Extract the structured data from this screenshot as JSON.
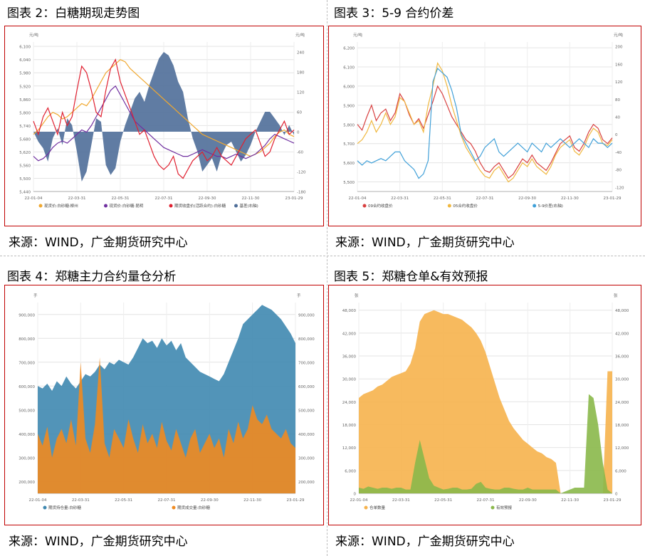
{
  "panels": [
    {
      "title": "图表 2：白糖期现走势图",
      "source": "来源：WIND，广金期货研究中心",
      "chart_data": {
        "type": "line",
        "left_unit": "元/吨",
        "right_unit": "元/吨",
        "ylim": [
          5440,
          6120
        ],
        "ylim_right": [
          -180,
          270
        ],
        "y_ticks": [
          5440,
          5500,
          5560,
          5620,
          5680,
          5740,
          5800,
          5860,
          5920,
          5980,
          6040,
          6100
        ],
        "y_ticks_right": [
          -180,
          -120,
          -60,
          0,
          60,
          120,
          180,
          240
        ],
        "x_ticks": [
          "22-01-04",
          "22-03-31",
          "22-05-31",
          "22-07-31",
          "22-09-30",
          "22-11-30",
          "23-01-29"
        ],
        "legend_position": "bottom",
        "series": [
          {
            "name": "现货价:白砂糖:柳州",
            "axis": "left",
            "color": "#f0a830",
            "values": [
              5700,
              5720,
              5750,
              5780,
              5800,
              5790,
              5770,
              5780,
              5800,
              5820,
              5840,
              5830,
              5860,
              5900,
              5940,
              5980,
              6000,
              6020,
              6040,
              6030,
              6000,
              5980,
              5960,
              5940,
              5920,
              5900,
              5880,
              5860,
              5840,
              5820,
              5800,
              5780,
              5760,
              5740,
              5720,
              5700,
              5690,
              5680,
              5670,
              5660,
              5650,
              5640,
              5630,
              5620,
              5610,
              5600,
              5610,
              5620,
              5640,
              5660,
              5690,
              5710,
              5720,
              5700,
              5690
            ]
          },
          {
            "name": "现货价:白砂糖:昆明",
            "axis": "left",
            "color": "#7030a0",
            "values": [
              5600,
              5580,
              5590,
              5610,
              5640,
              5660,
              5670,
              5660,
              5680,
              5700,
              5720,
              5710,
              5740,
              5780,
              5820,
              5860,
              5900,
              5920,
              5880,
              5840,
              5800,
              5760,
              5740,
              5720,
              5700,
              5680,
              5660,
              5640,
              5630,
              5620,
              5610,
              5600,
              5600,
              5610,
              5620,
              5630,
              5620,
              5610,
              5600,
              5600,
              5590,
              5600,
              5610,
              5600,
              5590,
              5600,
              5610,
              5630,
              5650,
              5680,
              5700,
              5690,
              5680,
              5670,
              5660
            ]
          },
          {
            "name": "期货收盘价(活跃合约):白砂糖",
            "axis": "left",
            "color": "#e02030",
            "values": [
              5760,
              5700,
              5780,
              5820,
              5760,
              5700,
              5800,
              5740,
              5780,
              5900,
              6010,
              5980,
              5900,
              5800,
              5780,
              5900,
              6000,
              6040,
              5940,
              5880,
              5820,
              5760,
              5700,
              5720,
              5660,
              5600,
              5560,
              5540,
              5560,
              5600,
              5520,
              5500,
              5540,
              5580,
              5600,
              5620,
              5580,
              5600,
              5640,
              5600,
              5580,
              5560,
              5600,
              5640,
              5680,
              5700,
              5720,
              5660,
              5600,
              5620,
              5680,
              5720,
              5760,
              5700,
              5720
            ]
          },
          {
            "name": "基差(右轴)",
            "axis": "right",
            "color": "#4f6e99",
            "fill": true,
            "values": [
              0,
              -30,
              -50,
              -90,
              -20,
              10,
              -40,
              40,
              20,
              -60,
              -150,
              -120,
              -40,
              40,
              30,
              -100,
              -130,
              -110,
              -30,
              20,
              60,
              100,
              120,
              90,
              140,
              180,
              220,
              240,
              230,
              200,
              150,
              120,
              40,
              -20,
              -60,
              -120,
              -100,
              -80,
              -120,
              -70,
              -40,
              -30,
              -60,
              -90,
              -70,
              -40,
              0,
              30,
              60,
              60,
              40,
              20,
              -10,
              20,
              -10
            ]
          }
        ]
      }
    },
    {
      "title": "图表 3：5-9 合约价差",
      "source": "来源：WIND，广金期货研究中心",
      "chart_data": {
        "type": "line",
        "left_unit": "元/吨",
        "right_unit": "元/吨",
        "ylim": [
          5450,
          6230
        ],
        "ylim_right": [
          -130,
          210
        ],
        "y_ticks": [
          5500,
          5600,
          5700,
          5800,
          5900,
          6000,
          6100,
          6200
        ],
        "y_ticks_right": [
          -120,
          -80,
          -40,
          0,
          40,
          80,
          120,
          160,
          200
        ],
        "x_ticks": [
          "22-01-04",
          "22-03-31",
          "22-05-31",
          "22-07-31",
          "22-09-30",
          "22-11-30",
          "23-01-29"
        ],
        "legend_position": "bottom",
        "series": [
          {
            "name": "09合约收盘价",
            "axis": "left",
            "color": "#d84040",
            "values": [
              5800,
              5770,
              5840,
              5900,
              5820,
              5860,
              5880,
              5820,
              5860,
              5960,
              5920,
              5850,
              5800,
              5830,
              5780,
              5850,
              5920,
              6000,
              5960,
              5900,
              5840,
              5800,
              5760,
              5720,
              5700,
              5660,
              5600,
              5560,
              5550,
              5580,
              5600,
              5560,
              5520,
              5540,
              5580,
              5620,
              5600,
              5640,
              5600,
              5580,
              5560,
              5600,
              5650,
              5700,
              5720,
              5740,
              5680,
              5660,
              5700,
              5760,
              5800,
              5780,
              5720,
              5700,
              5730
            ]
          },
          {
            "name": "05合约收盘价",
            "axis": "left",
            "color": "#f0b840",
            "values": [
              5700,
              5720,
              5760,
              5820,
              5760,
              5800,
              5860,
              5800,
              5840,
              5940,
              5920,
              5860,
              5800,
              5820,
              5760,
              5900,
              6000,
              6120,
              6080,
              6000,
              5900,
              5820,
              5740,
              5680,
              5640,
              5600,
              5560,
              5530,
              5520,
              5560,
              5580,
              5540,
              5500,
              5520,
              5560,
              5600,
              5580,
              5620,
              5580,
              5560,
              5540,
              5580,
              5640,
              5680,
              5700,
              5720,
              5660,
              5640,
              5680,
              5740,
              5780,
              5760,
              5700,
              5690,
              5720
            ]
          },
          {
            "name": "5-9价差(右轴)",
            "axis": "right",
            "color": "#40a0d8",
            "values": [
              -60,
              -70,
              -60,
              -65,
              -60,
              -55,
              -60,
              -50,
              -40,
              -40,
              -60,
              -70,
              -80,
              -100,
              -90,
              -60,
              120,
              150,
              140,
              130,
              100,
              60,
              0,
              -20,
              -40,
              -60,
              -50,
              -30,
              -20,
              -10,
              -40,
              -50,
              -40,
              -30,
              -20,
              -30,
              -40,
              -20,
              -30,
              -40,
              -20,
              -30,
              -20,
              -10,
              -20,
              -30,
              -20,
              -10,
              -20,
              -30,
              -10,
              -20,
              -20,
              -30,
              -20
            ]
          }
        ]
      }
    },
    {
      "title": "图表 4：郑糖主力合约量仓分析",
      "source": "来源：WIND，广金期货研究中心",
      "chart_data": {
        "type": "area",
        "left_unit": "手",
        "right_unit": "手",
        "ylim": [
          150000,
          950000
        ],
        "ylim_right": [
          150000,
          950000
        ],
        "y_ticks": [
          200000,
          300000,
          400000,
          500000,
          600000,
          700000,
          800000,
          900000
        ],
        "y_ticks_right": [
          200000,
          300000,
          400000,
          500000,
          600000,
          700000,
          800000,
          900000
        ],
        "x_ticks": [
          "22-01-04",
          "22-03-31",
          "22-05-31",
          "22-07-31",
          "22-09-30",
          "22-11-30",
          "23-01-29"
        ],
        "legend_position": "bottom",
        "series": [
          {
            "name": "期货持仓量:白砂糖",
            "axis": "left",
            "color": "#3f88b0",
            "fill": true,
            "values": [
              600000,
              590000,
              610000,
              580000,
              620000,
              600000,
              640000,
              610000,
              590000,
              620000,
              650000,
              640000,
              660000,
              690000,
              670000,
              700000,
              690000,
              710000,
              700000,
              690000,
              720000,
              760000,
              800000,
              780000,
              790000,
              760000,
              800000,
              770000,
              790000,
              750000,
              780000,
              720000,
              700000,
              680000,
              660000,
              650000,
              640000,
              630000,
              620000,
              650000,
              700000,
              750000,
              800000,
              860000,
              880000,
              900000,
              920000,
              940000,
              930000,
              920000,
              900000,
              880000,
              850000,
              820000,
              780000
            ]
          },
          {
            "name": "期货成交量:白砂糖",
            "axis": "left",
            "color": "#f08a20",
            "fill": true,
            "values": [
              400000,
              350000,
              430000,
              300000,
              380000,
              420000,
              360000,
              460000,
              350000,
              700000,
              380000,
              320000,
              440000,
              720000,
              360000,
              300000,
              420000,
              380000,
              340000,
              460000,
              380000,
              320000,
              440000,
              360000,
              400000,
              340000,
              450000,
              370000,
              330000,
              420000,
              360000,
              300000,
              380000,
              420000,
              320000,
              360000,
              400000,
              340000,
              380000,
              300000,
              420000,
              360000,
              450000,
              380000,
              420000,
              520000,
              460000,
              440000,
              480000,
              420000,
              400000,
              380000,
              420000,
              360000,
              340000
            ]
          }
        ]
      }
    },
    {
      "title": "图表 5：郑糖仓单&有效预报",
      "source": "来源：WIND，广金期货研究中心",
      "chart_data": {
        "type": "area",
        "left_unit": "张",
        "right_unit": "张",
        "ylim": [
          0,
          50000
        ],
        "ylim_right": [
          0,
          50000
        ],
        "y_ticks": [
          0,
          6000,
          12000,
          18000,
          24000,
          30000,
          36000,
          42000,
          48000
        ],
        "y_ticks_right": [
          0,
          6000,
          12000,
          18000,
          24000,
          30000,
          36000,
          42000,
          48000
        ],
        "x_ticks": [
          "22-01-04",
          "22-03-31",
          "22-05-31",
          "22-07-31",
          "22-09-30",
          "22-11-30",
          "23-01-29"
        ],
        "legend_position": "bottom",
        "series": [
          {
            "name": "仓单数量",
            "axis": "left",
            "color": "#f6b24d",
            "fill": true,
            "values": [
              25000,
              26000,
              26500,
              27000,
              28000,
              28500,
              29500,
              30500,
              31000,
              31500,
              32000,
              34000,
              38000,
              45000,
              47000,
              47500,
              48000,
              47500,
              47000,
              47000,
              46500,
              46000,
              45500,
              44500,
              43500,
              42000,
              40000,
              37000,
              33000,
              29000,
              25000,
              22000,
              19000,
              17000,
              15500,
              14000,
              13000,
              12000,
              11000,
              10500,
              9500,
              9000,
              8000,
              0,
              0,
              0,
              0,
              0,
              0,
              0,
              0,
              0,
              0,
              32000,
              32000
            ]
          },
          {
            "name": "有效预报",
            "axis": "left",
            "color": "#8ab84a",
            "fill": true,
            "values": [
              1500,
              1200,
              1800,
              1500,
              1200,
              1500,
              1500,
              1200,
              1500,
              1500,
              1000,
              1000,
              8000,
              14000,
              9000,
              4000,
              2000,
              1500,
              1000,
              1200,
              1500,
              1500,
              1000,
              1000,
              1200,
              2500,
              3000,
              1500,
              1200,
              1000,
              1000,
              1500,
              1500,
              1200,
              1000,
              1000,
              1500,
              1000,
              1000,
              1000,
              1000,
              1000,
              1000,
              0,
              500,
              1000,
              1500,
              1500,
              1500,
              26000,
              25000,
              18000,
              8000,
              1000,
              0
            ]
          }
        ]
      }
    }
  ]
}
